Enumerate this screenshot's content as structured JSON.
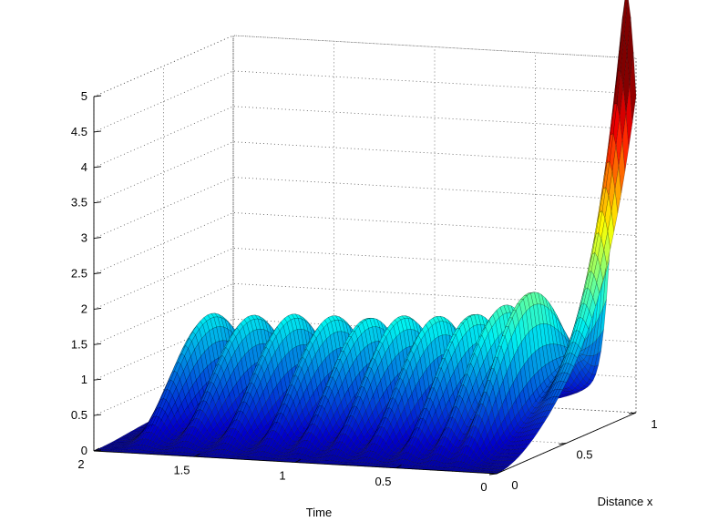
{
  "chart_data": {
    "type": "surface",
    "title": "",
    "xlabel": "Distance x",
    "ylabel": "Time",
    "zlabel": "",
    "xlim": [
      0,
      1
    ],
    "ylim": [
      0,
      2
    ],
    "zlim": [
      0,
      5
    ],
    "x_ticks": [
      "0",
      "0.5",
      "1"
    ],
    "y_ticks": [
      "0",
      "0.5",
      "1",
      "1.5",
      "2"
    ],
    "z_ticks": [
      "0",
      "0.5",
      "1",
      "1.5",
      "2",
      "2.5",
      "3",
      "3.5",
      "4",
      "4.5",
      "5"
    ],
    "grid": true,
    "colormap": "jet",
    "surface": {
      "t_peak": 0.05,
      "peak_value": 5.0,
      "ridges": [
        {
          "t": 0.22,
          "value": 2.2
        },
        {
          "t": 0.35,
          "value": 2.05
        },
        {
          "t": 0.5,
          "value": 1.95
        },
        {
          "t": 0.68,
          "value": 1.9
        },
        {
          "t": 0.85,
          "value": 1.9
        },
        {
          "t": 1.02,
          "value": 1.85
        },
        {
          "t": 1.2,
          "value": 1.85
        },
        {
          "t": 1.4,
          "value": 1.85
        },
        {
          "t": 1.6,
          "value": 1.8
        },
        {
          "t": 1.8,
          "value": 1.8
        }
      ]
    }
  }
}
